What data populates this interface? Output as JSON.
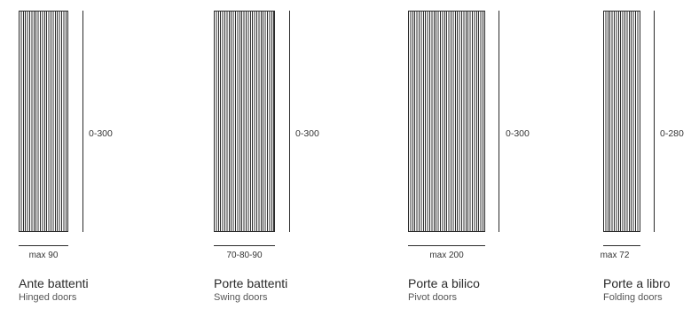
{
  "doors": [
    {
      "title": "Ante battenti",
      "subtitle": "Hinged doors",
      "height_label": "0-300",
      "width_label": "max 90"
    },
    {
      "title": "Porte battenti",
      "subtitle": "Swing doors",
      "height_label": "0-300",
      "width_label": "70-80-90"
    },
    {
      "title": "Porte a bilico",
      "subtitle": "Pivot doors",
      "height_label": "0-300",
      "width_label": "max 200"
    },
    {
      "title": "Porte a libro",
      "subtitle": "Folding doors",
      "height_label": "0-280",
      "width_label": "max 72"
    }
  ],
  "colors": {
    "line": "#2a2a2a",
    "text": "#1f1f1f"
  }
}
